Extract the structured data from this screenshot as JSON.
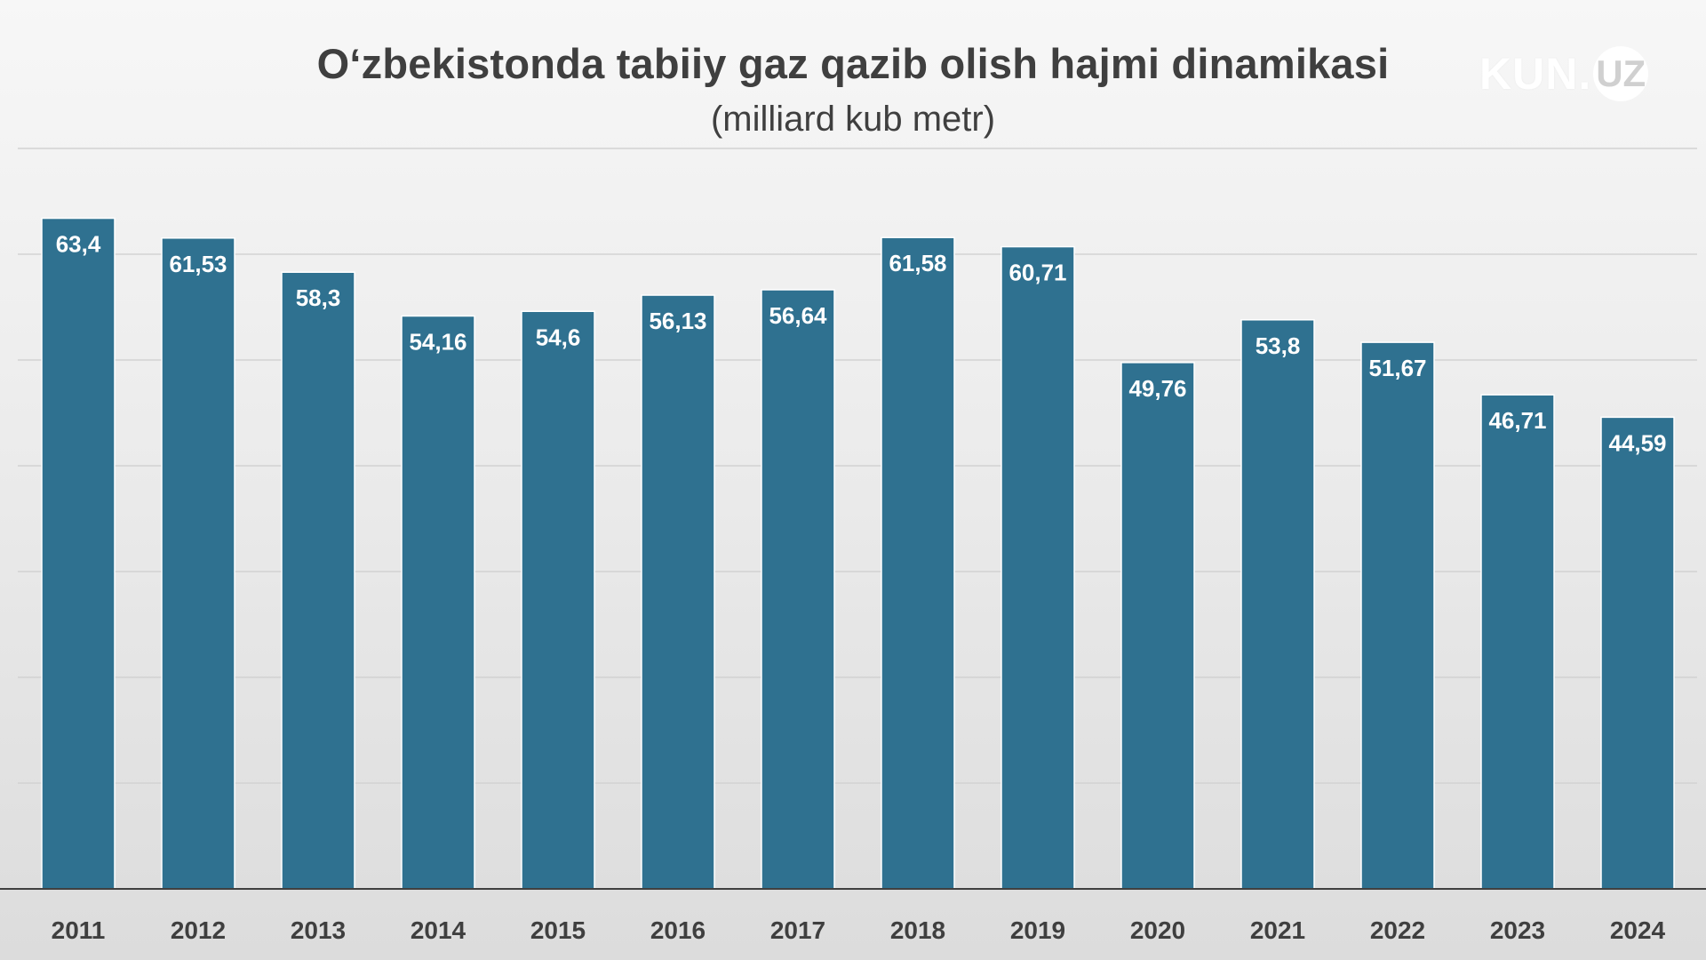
{
  "chart_data": {
    "type": "bar",
    "title": "O‘zbekistonda tabiiy gaz qazib olish hajmi dinamikasi",
    "subtitle": "(milliard kub metr)",
    "categories": [
      "2011",
      "2012",
      "2013",
      "2014",
      "2015",
      "2016",
      "2017",
      "2018",
      "2019",
      "2020",
      "2021",
      "2022",
      "2023",
      "2024"
    ],
    "values": [
      63.4,
      61.53,
      58.3,
      54.16,
      54.6,
      56.13,
      56.64,
      61.58,
      60.71,
      49.76,
      53.8,
      51.67,
      46.71,
      44.59
    ],
    "data_labels": [
      "63,4",
      "61,53",
      "58,3",
      "54,16",
      "54,6",
      "56,13",
      "56,64",
      "61,58",
      "60,71",
      "49,76",
      "53,8",
      "51,67",
      "46,71",
      "44,59"
    ],
    "ylim": [
      0,
      70
    ],
    "gridline_step": 10,
    "grid": true,
    "legend": "none",
    "bar_color": "#2f7190",
    "bar_border_color": "#ffffff"
  },
  "brand": {
    "text": "KUN.",
    "ring_text": "UZ"
  }
}
